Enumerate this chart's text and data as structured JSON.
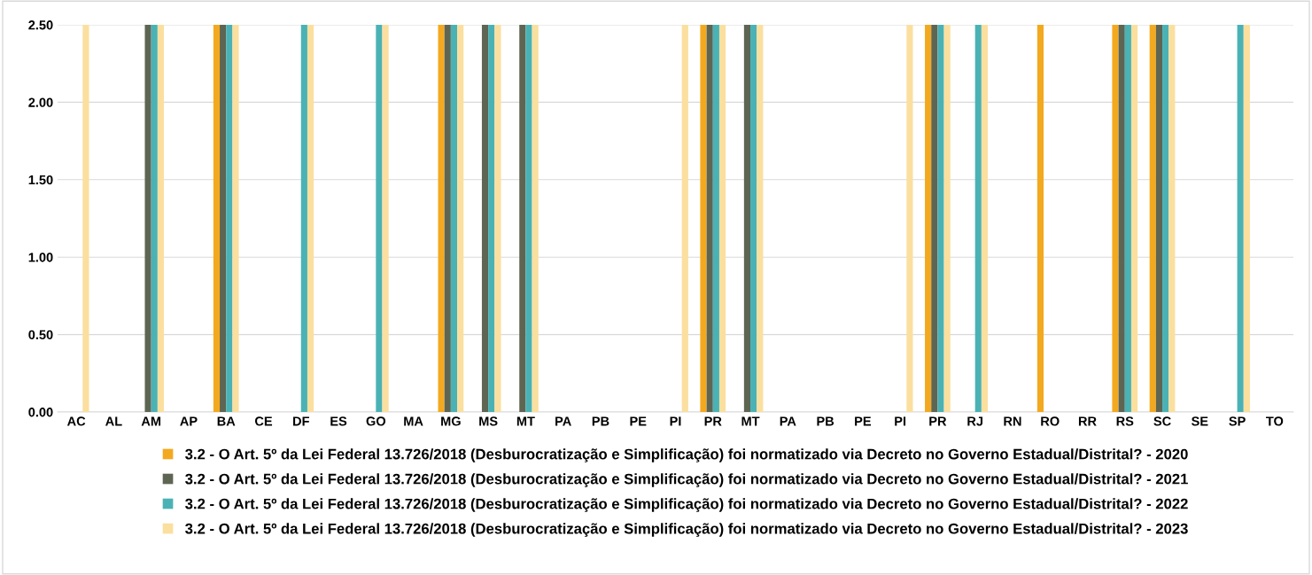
{
  "chart_data": {
    "type": "bar",
    "categories": [
      "AC",
      "AL",
      "AM",
      "AP",
      "BA",
      "CE",
      "DF",
      "ES",
      "GO",
      "MA",
      "MG",
      "MS",
      "MT",
      "PA",
      "PB",
      "PE",
      "PI",
      "PR",
      "MT",
      "PA",
      "PB",
      "PE",
      "PI",
      "PR",
      "RJ",
      "RN",
      "RO",
      "RR",
      "RS",
      "SC",
      "SE",
      "SP",
      "TO"
    ],
    "series": [
      {
        "name": "3.2 - O Art. 5º da Lei Federal 13.726/2018 (Desburocratização e Simplificação) foi normatizado via Decreto no Governo Estadual/Distrital? - 2020",
        "color": "#f3a91f",
        "values": [
          0,
          0,
          0,
          0,
          2.5,
          0,
          0,
          0,
          0,
          0,
          2.5,
          0,
          0,
          0,
          0,
          0,
          0,
          2.5,
          0,
          0,
          0,
          0,
          0,
          2.5,
          0,
          0,
          2.5,
          0,
          2.5,
          2.5,
          0,
          0,
          0
        ]
      },
      {
        "name": "3.2 - O Art. 5º da Lei Federal 13.726/2018 (Desburocratização e Simplificação) foi normatizado via Decreto no Governo Estadual/Distrital? - 2021",
        "color": "#5e6553",
        "values": [
          0,
          0,
          2.5,
          0,
          2.5,
          0,
          0,
          0,
          0,
          0,
          2.5,
          2.5,
          2.5,
          0,
          0,
          0,
          0,
          2.5,
          2.5,
          0,
          0,
          0,
          0,
          2.5,
          0,
          0,
          0,
          0,
          2.5,
          2.5,
          0,
          0,
          0
        ]
      },
      {
        "name": "3.2 - O Art. 5º da Lei Federal 13.726/2018 (Desburocratização e Simplificação) foi normatizado via Decreto no Governo Estadual/Distrital? - 2022",
        "color": "#4ab2b5",
        "values": [
          0,
          0,
          2.5,
          0,
          2.5,
          0,
          2.5,
          0,
          2.5,
          0,
          2.5,
          2.5,
          2.5,
          0,
          0,
          0,
          0,
          2.5,
          2.5,
          0,
          0,
          0,
          0,
          2.5,
          2.5,
          0,
          0,
          0,
          2.5,
          2.5,
          0,
          2.5,
          0
        ]
      },
      {
        "name": "3.2 - O Art. 5º da Lei Federal 13.726/2018 (Desburocratização e Simplificação) foi normatizado via Decreto no Governo Estadual/Distrital? - 2023",
        "color": "#fbdf9f",
        "values": [
          2.5,
          0,
          2.5,
          0,
          2.5,
          0,
          2.5,
          0,
          2.5,
          0,
          2.5,
          2.5,
          2.5,
          0,
          0,
          0,
          2.5,
          2.5,
          2.5,
          0,
          0,
          0,
          2.5,
          2.5,
          2.5,
          0,
          0,
          0,
          2.5,
          2.5,
          0,
          2.5,
          0
        ]
      }
    ],
    "ylim": [
      0,
      2.5
    ],
    "yticks": [
      {
        "value": 0,
        "label": "0.00"
      },
      {
        "value": 0.5,
        "label": "0.50"
      },
      {
        "value": 1,
        "label": "1.00"
      },
      {
        "value": 1.5,
        "label": "1.50"
      },
      {
        "value": 2,
        "label": "2.00"
      },
      {
        "value": 2.5,
        "label": "2.50"
      }
    ],
    "grid": "y",
    "legend": "bottom"
  }
}
